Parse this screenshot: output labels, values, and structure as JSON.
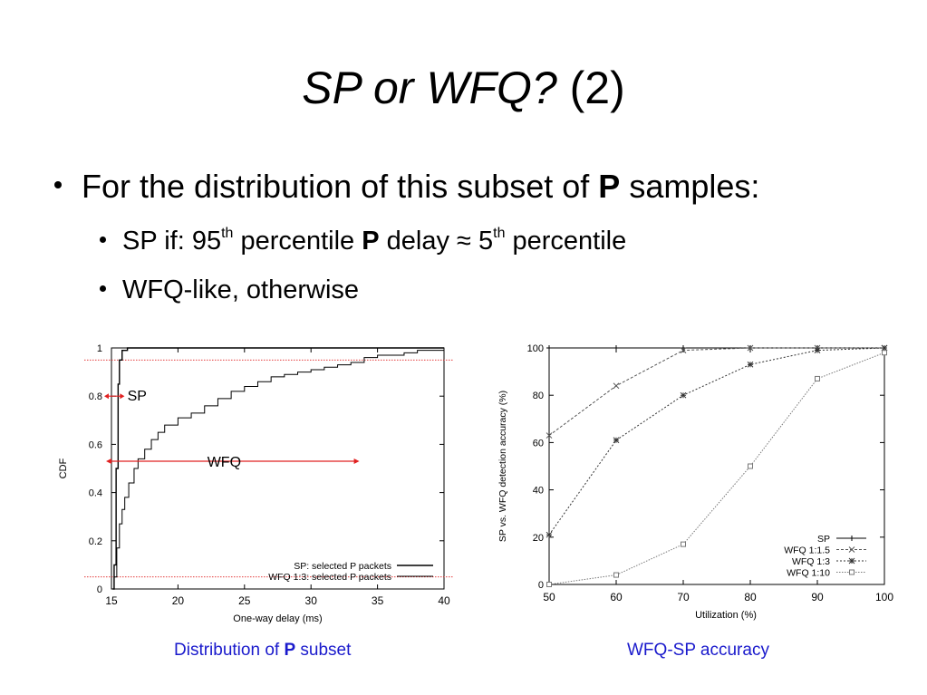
{
  "slide": {
    "title_italic": "SP or WFQ?",
    "title_rest": " (2)",
    "bullet1": {
      "pre": "For the distribution of this subset of ",
      "bold": "P",
      "post": " samples:"
    },
    "bullet2": {
      "a": "SP if: 95",
      "sup1": "th",
      "b": " percentile ",
      "bold": "P",
      "c": " delay ≈ 5",
      "sup2": "th",
      "d": " percentile"
    },
    "bullet3": "WFQ-like, otherwise",
    "caption_left": {
      "pre": "Distribution of ",
      "bold": "P",
      "post": " subset"
    },
    "caption_right": "WFQ-SP accuracy"
  },
  "colors": {
    "annotation_red": "#e02020",
    "caption_blue": "#1a1acc"
  },
  "chart_data": [
    {
      "type": "line",
      "title": "",
      "xlabel": "One-way delay (ms)",
      "ylabel": "CDF",
      "xlim": [
        15,
        40
      ],
      "ylim": [
        0,
        1
      ],
      "xticks": [
        "15",
        "20",
        "25",
        "30",
        "35",
        "40"
      ],
      "yticks": [
        "0",
        "0.2",
        "0.4",
        "0.6",
        "0.8",
        "1"
      ],
      "legend_position": "bottom-right",
      "series": [
        {
          "name": "SP: selected P packets",
          "x": [
            15.1,
            15.2,
            15.35,
            15.5,
            15.6,
            15.8,
            16.2,
            17,
            20,
            40
          ],
          "y": [
            0.0,
            0.1,
            0.5,
            0.85,
            0.95,
            0.99,
            1.0,
            1.0,
            1.0,
            1.0
          ]
        },
        {
          "name": "WFQ 1:3: selected P packets",
          "x": [
            15.0,
            15.2,
            15.4,
            15.6,
            15.8,
            16.0,
            16.3,
            16.7,
            17.0,
            17.5,
            18.0,
            18.5,
            19.0,
            20.0,
            21.0,
            22.0,
            23.0,
            24.0,
            25.0,
            26.0,
            27.0,
            28.0,
            29.0,
            30.0,
            31.0,
            32.0,
            33.0,
            34.0,
            35.0,
            36.0,
            37.0,
            38.0,
            39.0,
            40.0
          ],
          "y": [
            0.0,
            0.05,
            0.17,
            0.27,
            0.33,
            0.38,
            0.44,
            0.5,
            0.54,
            0.58,
            0.62,
            0.65,
            0.68,
            0.71,
            0.73,
            0.76,
            0.79,
            0.82,
            0.84,
            0.86,
            0.88,
            0.89,
            0.9,
            0.91,
            0.92,
            0.93,
            0.94,
            0.96,
            0.97,
            0.97,
            0.98,
            0.99,
            0.99,
            1.0
          ]
        }
      ],
      "annotations": [
        {
          "label": "SP",
          "y": 0.8
        },
        {
          "label": "WFQ",
          "y": 0.53
        }
      ],
      "reference_lines_y": [
        0.95,
        0.05
      ]
    },
    {
      "type": "line",
      "title": "",
      "xlabel": "Utilization (%)",
      "ylabel": "SP vs. WFQ detection accuracy (%)",
      "xlim": [
        50,
        100
      ],
      "ylim": [
        0,
        100
      ],
      "xticks": [
        "50",
        "60",
        "70",
        "80",
        "90",
        "100"
      ],
      "yticks": [
        "0",
        "20",
        "40",
        "60",
        "80",
        "100"
      ],
      "legend_position": "bottom-right",
      "x": [
        50,
        60,
        70,
        80,
        90,
        100
      ],
      "series": [
        {
          "name": "SP",
          "marker": "plus",
          "values": [
            100,
            100,
            100,
            100,
            100,
            100
          ]
        },
        {
          "name": "WFQ 1:1.5",
          "marker": "cross",
          "values": [
            63,
            84,
            99,
            100,
            100,
            100
          ]
        },
        {
          "name": "WFQ 1:3",
          "marker": "star",
          "values": [
            21,
            61,
            80,
            93,
            99,
            100
          ]
        },
        {
          "name": "WFQ 1:10",
          "marker": "square",
          "values": [
            0,
            4,
            17,
            50,
            87,
            98
          ]
        }
      ]
    }
  ]
}
